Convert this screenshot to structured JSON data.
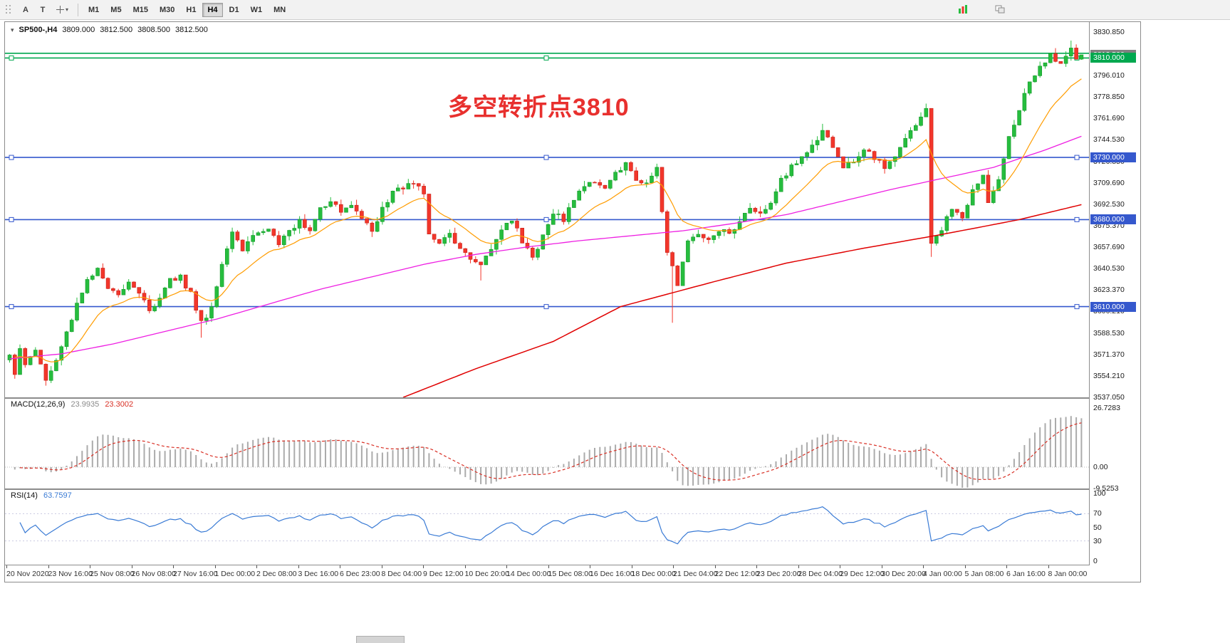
{
  "toolbar": {
    "tools": [
      {
        "label": "A"
      },
      {
        "label": "T"
      }
    ],
    "timeframes": [
      "M1",
      "M5",
      "M15",
      "M30",
      "H1",
      "H4",
      "D1",
      "W1",
      "MN"
    ],
    "active_timeframe": "H4"
  },
  "header": {
    "symbol": "SP500-,H4",
    "open": "3809.000",
    "high": "3812.500",
    "low": "3808.500",
    "close": "3812.500"
  },
  "annotation": {
    "text": "多空转折点3810"
  },
  "levels": [
    {
      "price": 3813.8,
      "color": "#00a84f",
      "tag": null
    },
    {
      "price": 3810.0,
      "color": "#00a84f",
      "tag": "3810.000"
    },
    {
      "price": 3730.0,
      "color": "#3558cd",
      "tag": "3730.000"
    },
    {
      "price": 3680.0,
      "color": "#3558cd",
      "tag": "3680.000"
    },
    {
      "price": 3610.0,
      "color": "#3558cd",
      "tag": "3610.000"
    }
  ],
  "current_price_tag": {
    "label": "3812.500",
    "price": 3812.5
  },
  "price_axis": {
    "labels": [
      "3830.850",
      "3813.170",
      "3796.010",
      "3778.850",
      "3761.690",
      "3744.530",
      "3726.850",
      "3709.690",
      "3692.530",
      "3675.370",
      "3657.690",
      "3640.530",
      "3623.370",
      "3606.210",
      "3588.530",
      "3571.370",
      "3554.210",
      "3537.050"
    ]
  },
  "macd_panel": {
    "title": "MACD(12,26,9)",
    "value_main": "23.9935",
    "value_signal": "23.3002",
    "axis_labels": [
      {
        "text": "26.7283",
        "value": 26.7283
      },
      {
        "text": "0.00",
        "value": 0
      },
      {
        "text": "-9.5253",
        "value": -9.5253
      }
    ]
  },
  "rsi_panel": {
    "title": "RSI(14)",
    "value": "63.7597",
    "axis_labels": [
      {
        "text": "100",
        "value": 100
      },
      {
        "text": "70",
        "value": 70
      },
      {
        "text": "50",
        "value": 50
      },
      {
        "text": "30",
        "value": 30
      },
      {
        "text": "0",
        "value": 0
      }
    ],
    "guide_levels": [
      70,
      30
    ]
  },
  "time_axis": {
    "labels": [
      "20 Nov 2020",
      "23 Nov 16:00",
      "25 Nov 08:00",
      "26 Nov 08:00",
      "27 Nov 16:00",
      "1 Dec 00:00",
      "2 Dec 08:00",
      "3 Dec 16:00",
      "6 Dec 23:00",
      "8 Dec 04:00",
      "9 Dec 12:00",
      "10 Dec 20:00",
      "14 Dec 00:00",
      "15 Dec 08:00",
      "16 Dec 16:00",
      "18 Dec 00:00",
      "21 Dec 04:00",
      "22 Dec 12:00",
      "23 Dec 20:00",
      "28 Dec 04:00",
      "29 Dec 12:00",
      "30 Dec 20:00",
      "4 Jan 00:00",
      "5 Jan 08:00",
      "6 Jan 16:00",
      "8 Jan 00:00"
    ]
  },
  "chart_data": {
    "type": "candlestick",
    "symbol": "SP500-",
    "timeframe": "H4",
    "bars": 208,
    "visible_range": {
      "price_min": 3537.05,
      "price_max": 3830.85
    },
    "last_ohlc": {
      "open": 3809.0,
      "high": 3812.5,
      "low": 3808.5,
      "close": 3812.5
    },
    "close_anchors": [
      [
        0,
        3570
      ],
      [
        1,
        3556
      ],
      [
        2,
        3578
      ],
      [
        3,
        3565
      ],
      [
        5,
        3575
      ],
      [
        7,
        3552
      ],
      [
        9,
        3566
      ],
      [
        11,
        3590
      ],
      [
        13,
        3612
      ],
      [
        15,
        3630
      ],
      [
        17,
        3640
      ],
      [
        19,
        3626
      ],
      [
        21,
        3618
      ],
      [
        23,
        3630
      ],
      [
        25,
        3622
      ],
      [
        27,
        3606
      ],
      [
        29,
        3618
      ],
      [
        31,
        3632
      ],
      [
        33,
        3634
      ],
      [
        35,
        3620
      ],
      [
        37,
        3598
      ],
      [
        39,
        3608
      ],
      [
        41,
        3642
      ],
      [
        43,
        3668
      ],
      [
        45,
        3656
      ],
      [
        47,
        3668
      ],
      [
        50,
        3672
      ],
      [
        52,
        3660
      ],
      [
        54,
        3670
      ],
      [
        56,
        3678
      ],
      [
        58,
        3670
      ],
      [
        60,
        3688
      ],
      [
        62,
        3696
      ],
      [
        64,
        3686
      ],
      [
        66,
        3692
      ],
      [
        68,
        3682
      ],
      [
        70,
        3672
      ],
      [
        72,
        3688
      ],
      [
        74,
        3702
      ],
      [
        76,
        3706
      ],
      [
        78,
        3710
      ],
      [
        80,
        3700
      ],
      [
        81,
        3670
      ],
      [
        83,
        3660
      ],
      [
        85,
        3668
      ],
      [
        87,
        3655
      ],
      [
        89,
        3650
      ],
      [
        91,
        3645
      ],
      [
        93,
        3654
      ],
      [
        95,
        3670
      ],
      [
        97,
        3680
      ],
      [
        99,
        3662
      ],
      [
        101,
        3650
      ],
      [
        103,
        3666
      ],
      [
        105,
        3686
      ],
      [
        107,
        3680
      ],
      [
        109,
        3696
      ],
      [
        111,
        3706
      ],
      [
        113,
        3712
      ],
      [
        115,
        3706
      ],
      [
        117,
        3718
      ],
      [
        119,
        3724
      ],
      [
        121,
        3712
      ],
      [
        123,
        3708
      ],
      [
        125,
        3720
      ],
      [
        127,
        3655
      ],
      [
        129,
        3628
      ],
      [
        131,
        3662
      ],
      [
        133,
        3670
      ],
      [
        135,
        3664
      ],
      [
        137,
        3672
      ],
      [
        139,
        3668
      ],
      [
        141,
        3678
      ],
      [
        143,
        3688
      ],
      [
        145,
        3684
      ],
      [
        147,
        3692
      ],
      [
        149,
        3712
      ],
      [
        151,
        3722
      ],
      [
        153,
        3730
      ],
      [
        155,
        3738
      ],
      [
        157,
        3750
      ],
      [
        159,
        3740
      ],
      [
        161,
        3722
      ],
      [
        163,
        3728
      ],
      [
        165,
        3736
      ],
      [
        167,
        3730
      ],
      [
        169,
        3722
      ],
      [
        171,
        3730
      ],
      [
        173,
        3744
      ],
      [
        175,
        3756
      ],
      [
        177,
        3770
      ],
      [
        178,
        3662
      ],
      [
        180,
        3672
      ],
      [
        182,
        3690
      ],
      [
        184,
        3682
      ],
      [
        186,
        3702
      ],
      [
        188,
        3716
      ],
      [
        189,
        3694
      ],
      [
        191,
        3714
      ],
      [
        193,
        3748
      ],
      [
        195,
        3768
      ],
      [
        197,
        3792
      ],
      [
        199,
        3802
      ],
      [
        201,
        3812
      ],
      [
        203,
        3806
      ],
      [
        205,
        3818
      ],
      [
        206,
        3809
      ],
      [
        207,
        3812.5
      ]
    ],
    "special_wicks": [
      {
        "i": 37,
        "low": 3585
      },
      {
        "i": 91,
        "low": 3631
      },
      {
        "i": 128,
        "low": 3597
      },
      {
        "i": 157,
        "high": 3757
      },
      {
        "i": 178,
        "low": 3650
      },
      {
        "i": 205,
        "high": 3824
      }
    ],
    "ma_mid_anchors": [
      [
        0,
        3568
      ],
      [
        10,
        3572
      ],
      [
        20,
        3580
      ],
      [
        30,
        3590
      ],
      [
        40,
        3600
      ],
      [
        50,
        3612
      ],
      [
        60,
        3624
      ],
      [
        70,
        3634
      ],
      [
        80,
        3644
      ],
      [
        90,
        3652
      ],
      [
        100,
        3658
      ],
      [
        110,
        3663
      ],
      [
        120,
        3667
      ],
      [
        130,
        3671
      ],
      [
        140,
        3677
      ],
      [
        150,
        3684
      ],
      [
        160,
        3694
      ],
      [
        170,
        3704
      ],
      [
        180,
        3713
      ],
      [
        190,
        3722
      ],
      [
        200,
        3736
      ],
      [
        207,
        3747
      ]
    ],
    "ma_slow_anchors": [
      [
        76,
        3537
      ],
      [
        90,
        3560
      ],
      [
        105,
        3582
      ],
      [
        118,
        3610
      ],
      [
        136,
        3630
      ],
      [
        150,
        3645
      ],
      [
        165,
        3657
      ],
      [
        180,
        3668
      ],
      [
        195,
        3680
      ],
      [
        207,
        3692
      ]
    ],
    "indicators": {
      "macd": {
        "fast": 12,
        "slow": 26,
        "signal": 9
      },
      "rsi": {
        "period": 14
      },
      "ma_fast_period": 14
    }
  },
  "colors": {
    "up": "#26bd3e",
    "up_border": "#149929",
    "down": "#f2362b",
    "down_border": "#c62018",
    "ma_fast": "#ff9c00",
    "ma_mid": "#ee1fe2",
    "ma_slow": "#e00000",
    "macd_hist": "#ababab",
    "macd_signal": "#d93025",
    "rsi": "#3a7bd5",
    "annotation": "#e8302e"
  }
}
